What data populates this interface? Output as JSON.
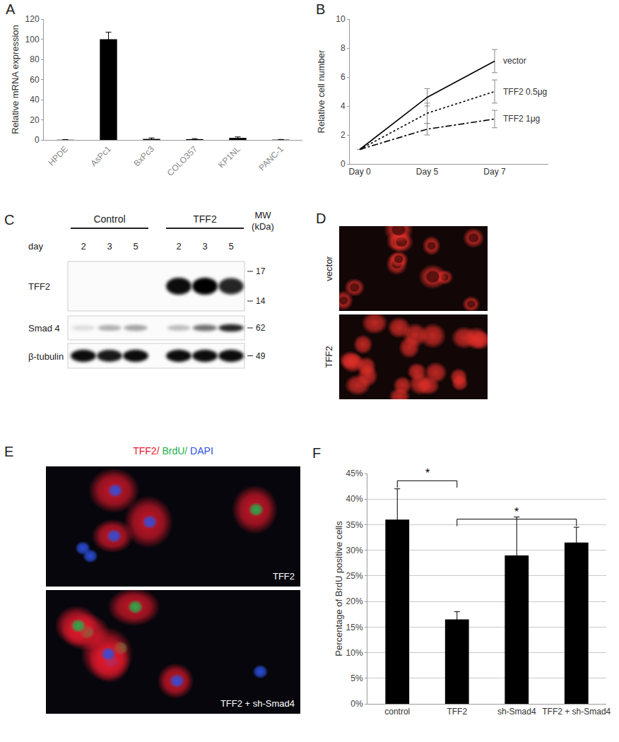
{
  "chart_data": [
    {
      "panel": "A",
      "type": "bar",
      "categories": [
        "HPDE",
        "AsPc1",
        "BxPc3",
        "COLO357",
        "KP1NL",
        "PANC-1"
      ],
      "values": [
        0.2,
        100,
        1,
        0.8,
        2,
        0.3
      ],
      "errors": [
        0.1,
        7,
        1,
        0.5,
        1,
        0.2
      ],
      "color": "#000000",
      "ylabel": "Relative mRNA expression",
      "ylim": [
        0,
        120
      ],
      "yticks": [
        0,
        20,
        40,
        60,
        80,
        100,
        120
      ],
      "grid": false
    },
    {
      "panel": "B",
      "type": "line",
      "categories": [
        "Day 0",
        "Day 5",
        "Day 7"
      ],
      "series": [
        {
          "name": "vector",
          "values": [
            1,
            4.6,
            7.1
          ],
          "errors": [
            0,
            0.6,
            0.8
          ],
          "line_style": "solid",
          "color": "#000000"
        },
        {
          "name": "TFF2 0.5μg",
          "values": [
            1,
            3.5,
            5.0
          ],
          "errors": [
            0,
            0.7,
            0.8
          ],
          "line_style": "dot",
          "color": "#000000"
        },
        {
          "name": "TFF2 1μg",
          "values": [
            1,
            2.4,
            3.1
          ],
          "errors": [
            0,
            0.4,
            0.6
          ],
          "line_style": "dashdot",
          "color": "#000000"
        }
      ],
      "ylabel": "Relative cell number",
      "ylim": [
        0,
        10
      ],
      "yticks": [
        0,
        2,
        4,
        6,
        8,
        10
      ],
      "grid": false
    },
    {
      "panel": "F",
      "type": "bar",
      "categories": [
        "control",
        "TFF2",
        "sh-Smad4",
        "TFF2 + sh-Smad4"
      ],
      "values": [
        36,
        16.5,
        29,
        31.5
      ],
      "errors": [
        6,
        1.5,
        7.5,
        3
      ],
      "color": "#000000",
      "ylabel": "Percentage of BrdU positive cells",
      "ylim": [
        0,
        45
      ],
      "yticks": [
        {
          "value": 0,
          "label": "0%"
        },
        {
          "value": 5,
          "label": "5%"
        },
        {
          "value": 10,
          "label": "10%"
        },
        {
          "value": 15,
          "label": "15%"
        },
        {
          "value": 20,
          "label": "20%"
        },
        {
          "value": 25,
          "label": "25%"
        },
        {
          "value": 30,
          "label": "30%"
        },
        {
          "value": 35,
          "label": "35%"
        },
        {
          "value": 40,
          "label": "40%"
        },
        {
          "value": 45,
          "label": "45%"
        }
      ],
      "grid": true,
      "annotations": [
        {
          "text": "*",
          "from": "control",
          "to": "TFF2"
        },
        {
          "text": "*",
          "from": "TFF2",
          "to": "TFF2 + sh-Smad4"
        }
      ]
    }
  ],
  "western_blot": {
    "panel": "C",
    "groups": [
      {
        "label": "Control",
        "days": [
          2,
          3,
          5
        ]
      },
      {
        "label": "TFF2",
        "days": [
          2,
          3,
          5
        ]
      }
    ],
    "day_label": "day",
    "mw_title": "MW (kDa)",
    "rows": [
      {
        "name": "TFF2",
        "mw": [
          17,
          14
        ],
        "intensities": [
          0,
          0,
          0,
          0.95,
          1,
          0.85
        ]
      },
      {
        "name": "Smad 4",
        "mw": [
          62
        ],
        "intensities": [
          0.12,
          0.3,
          0.35,
          0.25,
          0.55,
          0.85
        ]
      },
      {
        "name": "β-tubulin",
        "mw": [
          49
        ],
        "intensities": [
          0.95,
          0.9,
          0.95,
          0.95,
          0.95,
          0.95
        ]
      }
    ]
  },
  "micrographs": [
    {
      "panel": "D",
      "color": "#e8302a",
      "images": [
        {
          "label": "vector"
        },
        {
          "label": "TFF2"
        }
      ]
    },
    {
      "panel": "E",
      "stains": [
        {
          "text": "TFF2/",
          "color": "#e8192c"
        },
        {
          "text": " BrdU/",
          "color": "#22b14c"
        },
        {
          "text": " DAPI",
          "color": "#2b50e0"
        }
      ],
      "images": [
        {
          "label": "TFF2"
        },
        {
          "label": "TFF2 + sh-Smad4"
        }
      ]
    }
  ]
}
